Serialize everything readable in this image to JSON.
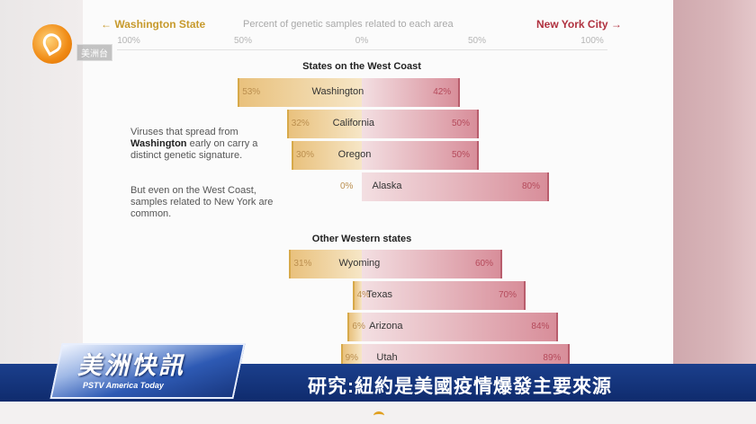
{
  "logo": {
    "text": "美洲台",
    "colors": {
      "accent": "#f08a14"
    }
  },
  "header": {
    "left_label": "← Washington State",
    "center_label": "Percent of genetic samples related to each area",
    "right_label": "New York City →"
  },
  "annotation": {
    "p1_pre": "Viruses that spread from",
    "p1_bold": "Washington",
    "p1_post": "early on carry a distinct genetic signature.",
    "p2": "But even on the West Coast, samples related to New York are common."
  },
  "ticker": {
    "brand": "美洲快訊",
    "brand_sub": "PSTV America Today",
    "headline": "研究:紐約是美國疫情爆發主要來源"
  },
  "chart_data": {
    "type": "bar",
    "orientation": "horizontal-diverging",
    "axis_ticks": [
      "100%",
      "50%",
      "0%",
      "50%",
      "100%"
    ],
    "series": [
      {
        "name": "Washington State",
        "color": "#e7bb6e"
      },
      {
        "name": "New York City",
        "color": "#d27f8e"
      }
    ],
    "groups": [
      {
        "title": "States on the West Coast",
        "rows": [
          {
            "state": "Washington",
            "left": 53,
            "right": 42,
            "left_label": "53%",
            "right_label": "42%"
          },
          {
            "state": "California",
            "left": 32,
            "right": 50,
            "left_label": "32%",
            "right_label": "50%"
          },
          {
            "state": "Oregon",
            "left": 30,
            "right": 50,
            "left_label": "30%",
            "right_label": "50%"
          },
          {
            "state": "Alaska",
            "left": 0,
            "right": 80,
            "left_label": "0%",
            "right_label": "80%"
          }
        ]
      },
      {
        "title": "Other Western states",
        "rows": [
          {
            "state": "Wyoming",
            "left": 31,
            "right": 60,
            "left_label": "31%",
            "right_label": "60%"
          },
          {
            "state": "Texas",
            "left": 4,
            "right": 70,
            "left_label": "4%",
            "right_label": "70%"
          },
          {
            "state": "Arizona",
            "left": 6,
            "right": 84,
            "left_label": "6%",
            "right_label": "84%"
          },
          {
            "state": "Utah",
            "left": 9,
            "right": 89,
            "left_label": "9%",
            "right_label": "89%"
          }
        ]
      }
    ]
  }
}
